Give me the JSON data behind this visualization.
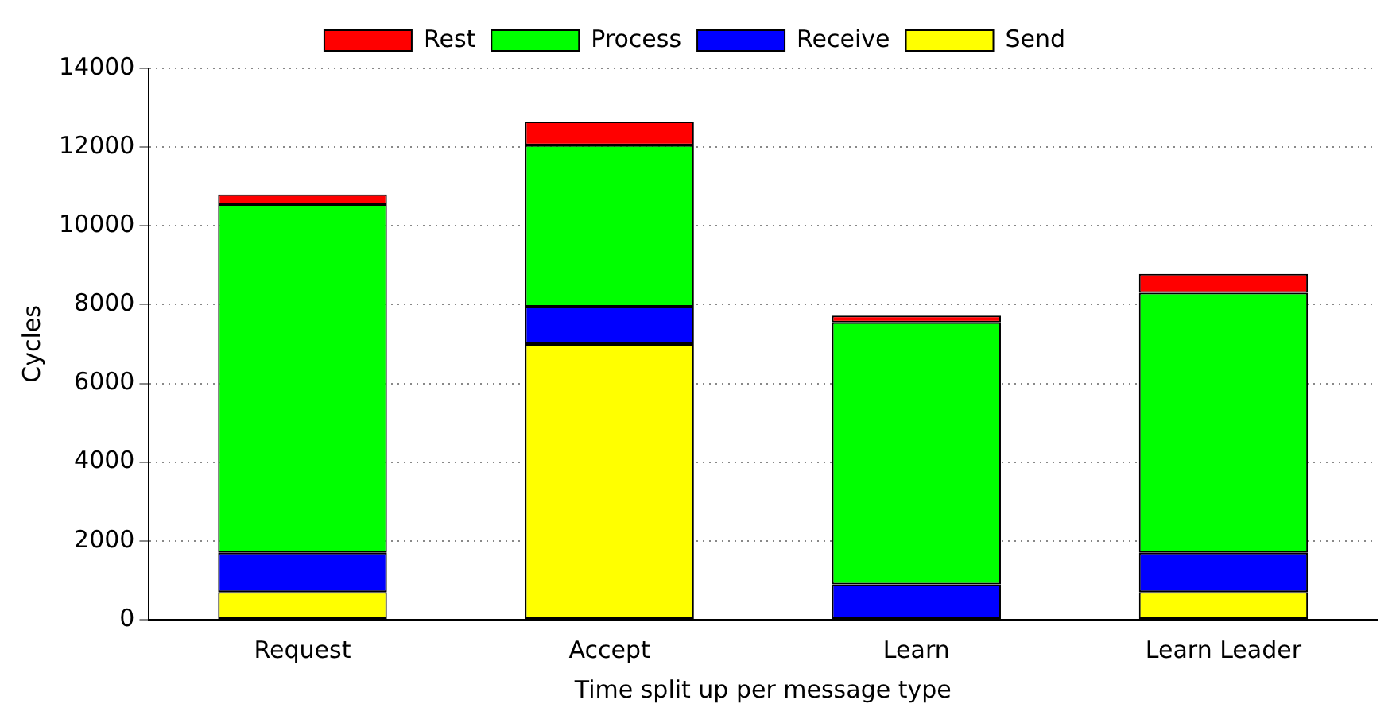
{
  "chart_data": {
    "type": "bar",
    "stacked": true,
    "xlabel": "Time split up per message type",
    "ylabel": "Cycles",
    "categories": [
      "Request",
      "Accept",
      "Learn",
      "Learn Leader"
    ],
    "series": [
      {
        "name": "Send",
        "color": "#ffff00",
        "values": [
          700,
          7000,
          0,
          700
        ]
      },
      {
        "name": "Receive",
        "color": "#0000ff",
        "values": [
          1000,
          950,
          900,
          1000
        ]
      },
      {
        "name": "Process",
        "color": "#00ff00",
        "values": [
          8850,
          4100,
          6650,
          6600
        ]
      },
      {
        "name": "Rest",
        "color": "#ff0000",
        "values": [
          250,
          600,
          170,
          480
        ]
      }
    ],
    "ylim": [
      0,
      14000
    ],
    "yticks": [
      0,
      2000,
      4000,
      6000,
      8000,
      10000,
      12000,
      14000
    ],
    "grid": "y",
    "legend": "top"
  }
}
